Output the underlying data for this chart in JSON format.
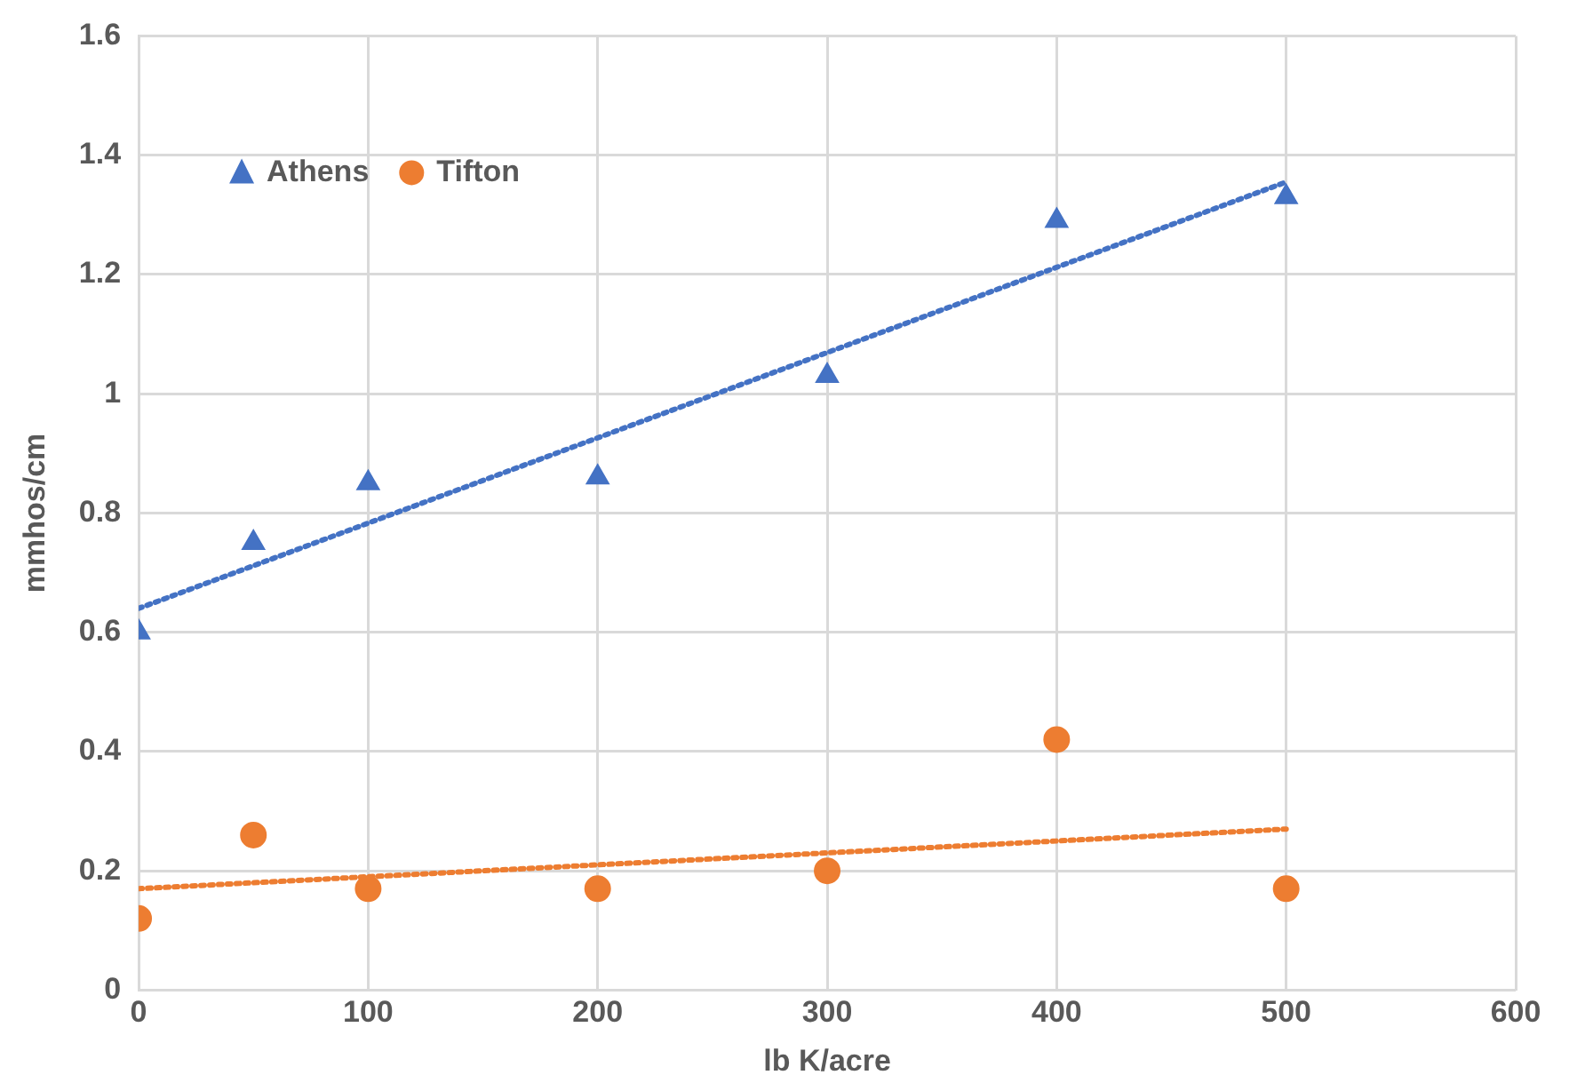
{
  "chart_data": {
    "type": "scatter",
    "xlabel": "lb K/acre",
    "ylabel": "mmhos/cm",
    "xlim": [
      0,
      600
    ],
    "xticks": [
      0,
      100,
      200,
      300,
      400,
      500,
      600
    ],
    "ylim": [
      0,
      1.6
    ],
    "yticks": [
      0,
      0.2,
      0.4,
      0.6,
      0.8,
      1,
      1.2,
      1.4,
      1.6
    ],
    "grid": true,
    "legend": "top left",
    "series": [
      {
        "name": "Athens",
        "color": "#4472c4",
        "marker": "triangle",
        "x": [
          0,
          50,
          100,
          200,
          300,
          400,
          500
        ],
        "values": [
          0.6,
          0.75,
          0.85,
          0.86,
          1.03,
          1.29,
          1.33
        ]
      },
      {
        "name": "Tifton",
        "color": "#ed7d31",
        "marker": "circle",
        "x": [
          0,
          50,
          100,
          200,
          300,
          400,
          500
        ],
        "values": [
          0.12,
          0.26,
          0.17,
          0.17,
          0.2,
          0.42,
          0.17
        ]
      },
      {
        "type": "line",
        "color": "#4472c4",
        "marker": "none",
        "line_style": "dotted",
        "x": [
          0,
          500
        ],
        "values": [
          0.64,
          1.355
        ]
      },
      {
        "type": "line",
        "color": "#ed7d31",
        "marker": "none",
        "line_style": "dotted",
        "x": [
          0,
          500
        ],
        "values": [
          0.17,
          0.27
        ]
      }
    ]
  }
}
